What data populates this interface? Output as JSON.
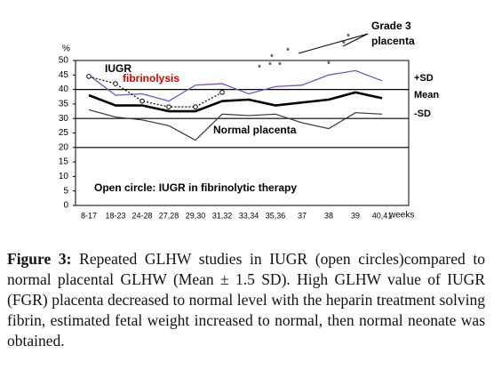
{
  "chart_data": {
    "type": "line",
    "y_unit": "%",
    "x_label": "weeks",
    "categories": [
      "8-17",
      "18-23",
      "24-28",
      "27,28",
      "29,30",
      "31,32",
      "33,34",
      "35,36",
      "37",
      "38",
      "39",
      "40,41"
    ],
    "series": [
      {
        "name": "+SD",
        "color": "#7b4fc0",
        "values": [
          45,
          38,
          38.5,
          36,
          41.5,
          42,
          38.5,
          41,
          41.5,
          45,
          46.5,
          43
        ]
      },
      {
        "name": "Mean",
        "color": "#000000",
        "values": [
          38,
          34.5,
          34.5,
          32.5,
          32.5,
          36,
          36.5,
          34.5,
          35.5,
          36.5,
          39,
          37
        ]
      },
      {
        "name": "-SD",
        "color": "#333333",
        "values": [
          33,
          30.5,
          29.5,
          27.5,
          22.5,
          31.5,
          31,
          31.5,
          28.5,
          26.5,
          32,
          31.5
        ]
      },
      {
        "name": "IUGR",
        "color": "#000000",
        "values": [
          44.5,
          42,
          36,
          34,
          34,
          39,
          null,
          null,
          null,
          null,
          null,
          null
        ]
      }
    ],
    "ylim": [
      0,
      50
    ],
    "yticks": [
      0,
      5,
      10,
      15,
      20,
      25,
      30,
      35,
      40,
      45,
      50
    ],
    "reference_lines": [
      20,
      30,
      40
    ],
    "annotations": [
      "fibrinolysis",
      "Normal placenta",
      "Open circle: IUGR in fibrinolytic therapy",
      "Grade 3",
      "placenta"
    ]
  },
  "caption": {
    "label": "Figure 3:",
    "text": "Repeated GLHW studies in IUGR (open circles)compared to normal placental GLHW (Mean ± 1.5 SD). High GLHW value of IUGR (FGR) placenta decreased to normal level with the heparin treatment solving fibrin, estimated fetal weight increased to normal, then normal neonate was obtained."
  }
}
